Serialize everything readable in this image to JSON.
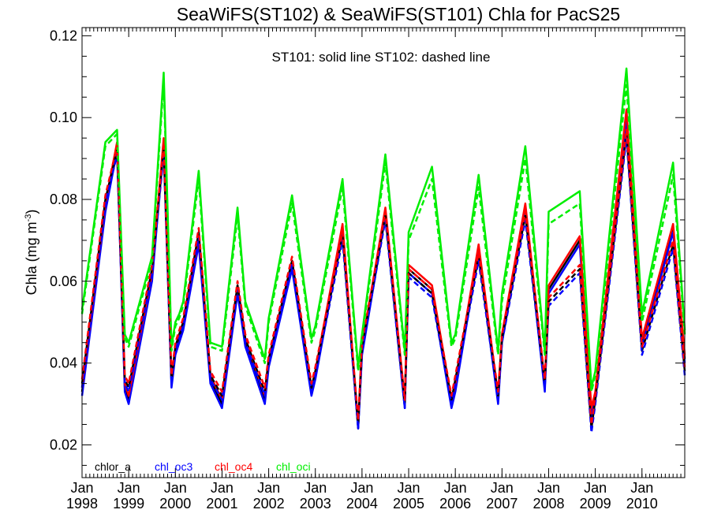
{
  "chart_data": {
    "type": "line",
    "title": "SeaWiFS(ST102) & SeaWiFS(ST101)  Chla for PacS25",
    "annotation": "ST101: solid line   ST102: dashed line",
    "ylabel": "Chla (mg m",
    "ylabel_sup": "-3",
    "ylabel_close": ")",
    "xlim": [
      1998.0,
      2010.917
    ],
    "ylim": [
      0.012,
      0.122
    ],
    "y_ticks": [
      0.02,
      0.04,
      0.06,
      0.08,
      0.1,
      0.12
    ],
    "y_tick_labels": [
      "0.02",
      "0.04",
      "0.06",
      "0.08",
      "0.10",
      "0.12"
    ],
    "x_ticks": [
      {
        "x": 1998,
        "month": "Jan",
        "year": "1998"
      },
      {
        "x": 1999,
        "month": "Jan",
        "year": "1999"
      },
      {
        "x": 2000,
        "month": "Jan",
        "year": "2000"
      },
      {
        "x": 2001,
        "month": "Jan",
        "year": "2001"
      },
      {
        "x": 2002,
        "month": "Jan",
        "year": "2002"
      },
      {
        "x": 2003,
        "month": "Jan",
        "year": "2003"
      },
      {
        "x": 2004,
        "month": "Jan",
        "year": "2004"
      },
      {
        "x": 2005,
        "month": "Jan",
        "year": "2005"
      },
      {
        "x": 2006,
        "month": "Jan",
        "year": "2006"
      },
      {
        "x": 2007,
        "month": "Jan",
        "year": "2007"
      },
      {
        "x": 2008,
        "month": "Jan",
        "year": "2008"
      },
      {
        "x": 2009,
        "month": "Jan",
        "year": "2009"
      },
      {
        "x": 2010,
        "month": "Jan",
        "year": "2010"
      }
    ],
    "grid": false,
    "legend_position": "bottom-left",
    "series": [
      {
        "name": "chlor_a",
        "color": "#000000",
        "style": "solid",
        "x": [
          1998.0,
          1998.5,
          1998.75,
          1998.917,
          1999.0,
          1999.5,
          1999.75,
          1999.917,
          2000.0,
          2000.083,
          2000.167,
          2000.5,
          2000.75,
          2001.0,
          2001.333,
          2001.5,
          2001.917,
          2002.0,
          2002.5,
          2002.917,
          2003.0,
          2003.583,
          2003.917,
          2004.0,
          2004.5,
          2004.917,
          2005.0,
          2005.5,
          2005.917,
          2006.0,
          2006.5,
          2006.917,
          2007.0,
          2007.5,
          2007.917,
          2008.0,
          2008.667,
          2008.917,
          2009.0,
          2009.667,
          2010.0,
          2010.667,
          2010.917
        ],
        "y": [
          0.033,
          0.078,
          0.093,
          0.034,
          0.031,
          0.061,
          0.094,
          0.035,
          0.043,
          0.046,
          0.049,
          0.07,
          0.036,
          0.03,
          0.058,
          0.045,
          0.031,
          0.04,
          0.064,
          0.033,
          0.037,
          0.073,
          0.024,
          0.043,
          0.077,
          0.03,
          0.063,
          0.058,
          0.03,
          0.034,
          0.068,
          0.031,
          0.046,
          0.078,
          0.034,
          0.058,
          0.07,
          0.028,
          0.032,
          0.101,
          0.045,
          0.073,
          0.041
        ]
      },
      {
        "name": "chl_oc3",
        "color": "#0000ff",
        "style": "solid",
        "x": [
          1998.0,
          1998.5,
          1998.75,
          1998.917,
          1999.0,
          1999.5,
          1999.75,
          1999.917,
          2000.0,
          2000.083,
          2000.167,
          2000.5,
          2000.75,
          2001.0,
          2001.333,
          2001.5,
          2001.917,
          2002.0,
          2002.5,
          2002.917,
          2003.0,
          2003.583,
          2003.917,
          2004.0,
          2004.5,
          2004.917,
          2005.0,
          2005.5,
          2005.917,
          2006.0,
          2006.5,
          2006.917,
          2007.0,
          2007.5,
          2007.917,
          2008.0,
          2008.667,
          2008.917,
          2009.0,
          2009.667,
          2010.0,
          2010.667,
          2010.917
        ],
        "y": [
          0.032,
          0.077,
          0.092,
          0.033,
          0.03,
          0.06,
          0.093,
          0.034,
          0.042,
          0.045,
          0.048,
          0.069,
          0.035,
          0.029,
          0.057,
          0.044,
          0.03,
          0.039,
          0.063,
          0.032,
          0.036,
          0.072,
          0.024,
          0.042,
          0.076,
          0.029,
          0.062,
          0.057,
          0.029,
          0.033,
          0.067,
          0.03,
          0.045,
          0.077,
          0.033,
          0.057,
          0.069,
          0.027,
          0.031,
          0.1,
          0.044,
          0.072,
          0.04
        ]
      },
      {
        "name": "chl_oc4",
        "color": "#ff0000",
        "style": "solid",
        "x": [
          1998.0,
          1998.5,
          1998.75,
          1998.917,
          1999.0,
          1999.5,
          1999.75,
          1999.917,
          2000.0,
          2000.083,
          2000.167,
          2000.5,
          2000.75,
          2001.0,
          2001.333,
          2001.5,
          2001.917,
          2002.0,
          2002.5,
          2002.917,
          2003.0,
          2003.583,
          2003.917,
          2004.0,
          2004.5,
          2004.917,
          2005.0,
          2005.5,
          2005.917,
          2006.0,
          2006.5,
          2006.917,
          2007.0,
          2007.5,
          2007.917,
          2008.0,
          2008.667,
          2008.917,
          2009.0,
          2009.667,
          2010.0,
          2010.667,
          2010.917
        ],
        "y": [
          0.034,
          0.079,
          0.094,
          0.035,
          0.032,
          0.062,
          0.095,
          0.036,
          0.044,
          0.047,
          0.05,
          0.071,
          0.037,
          0.031,
          0.059,
          0.046,
          0.032,
          0.041,
          0.065,
          0.034,
          0.038,
          0.074,
          0.025,
          0.044,
          0.078,
          0.031,
          0.064,
          0.059,
          0.031,
          0.035,
          0.069,
          0.032,
          0.047,
          0.079,
          0.035,
          0.059,
          0.071,
          0.029,
          0.033,
          0.102,
          0.046,
          0.074,
          0.042
        ]
      },
      {
        "name": "chl_oci",
        "color": "#00ee00",
        "style": "solid",
        "x": [
          1998.0,
          1998.5,
          1998.75,
          1998.917,
          1999.0,
          1999.5,
          1999.75,
          1999.917,
          2000.0,
          2000.083,
          2000.167,
          2000.5,
          2000.75,
          2001.0,
          2001.333,
          2001.5,
          2001.917,
          2002.0,
          2002.5,
          2002.917,
          2003.0,
          2003.583,
          2003.917,
          2004.0,
          2004.5,
          2004.917,
          2005.0,
          2005.5,
          2005.917,
          2006.0,
          2006.5,
          2006.917,
          2007.0,
          2007.5,
          2007.917,
          2008.0,
          2008.667,
          2008.917,
          2009.0,
          2009.667,
          2010.0,
          2010.667,
          2010.917
        ],
        "y": [
          0.053,
          0.094,
          0.097,
          0.047,
          0.045,
          0.066,
          0.111,
          0.044,
          0.05,
          0.052,
          0.055,
          0.087,
          0.045,
          0.044,
          0.078,
          0.055,
          0.041,
          0.051,
          0.081,
          0.046,
          0.049,
          0.085,
          0.039,
          0.047,
          0.091,
          0.043,
          0.072,
          0.088,
          0.045,
          0.047,
          0.086,
          0.043,
          0.057,
          0.093,
          0.043,
          0.077,
          0.082,
          0.034,
          0.038,
          0.112,
          0.052,
          0.089,
          0.048
        ]
      },
      {
        "name": "chlor_a (ST102)",
        "color": "#000000",
        "style": "dashed",
        "x": [
          1998.0,
          1998.5,
          1998.75,
          1998.917,
          1999.0,
          1999.5,
          1999.75,
          1999.917,
          2000.0,
          2000.083,
          2000.167,
          2000.5,
          2000.75,
          2001.0,
          2001.333,
          2001.5,
          2001.917,
          2002.0,
          2002.5,
          2002.917,
          2003.0,
          2003.583,
          2003.917,
          2004.0,
          2004.5,
          2004.917,
          2005.0,
          2005.5,
          2005.917,
          2006.0,
          2006.5,
          2006.917,
          2007.0,
          2007.5,
          2007.917,
          2008.0,
          2008.667,
          2008.917,
          2009.0,
          2009.667,
          2010.0,
          2010.667,
          2010.917
        ],
        "y": [
          0.035,
          0.08,
          0.092,
          0.036,
          0.034,
          0.063,
          0.092,
          0.036,
          0.044,
          0.047,
          0.05,
          0.072,
          0.037,
          0.032,
          0.059,
          0.046,
          0.033,
          0.041,
          0.065,
          0.034,
          0.038,
          0.071,
          0.025,
          0.044,
          0.076,
          0.03,
          0.062,
          0.057,
          0.031,
          0.036,
          0.066,
          0.032,
          0.046,
          0.076,
          0.035,
          0.055,
          0.063,
          0.024,
          0.031,
          0.096,
          0.043,
          0.069,
          0.038
        ]
      },
      {
        "name": "chl_oc3 (ST102)",
        "color": "#0000ff",
        "style": "dashed",
        "x": [
          1998.0,
          1998.5,
          1998.75,
          1998.917,
          1999.0,
          1999.5,
          1999.75,
          1999.917,
          2000.0,
          2000.083,
          2000.167,
          2000.5,
          2000.75,
          2001.0,
          2001.333,
          2001.5,
          2001.917,
          2002.0,
          2002.5,
          2002.917,
          2003.0,
          2003.583,
          2003.917,
          2004.0,
          2004.5,
          2004.917,
          2005.0,
          2005.5,
          2005.917,
          2006.0,
          2006.5,
          2006.917,
          2007.0,
          2007.5,
          2007.917,
          2008.0,
          2008.667,
          2008.917,
          2009.0,
          2009.667,
          2010.0,
          2010.667,
          2010.917
        ],
        "y": [
          0.034,
          0.079,
          0.091,
          0.035,
          0.033,
          0.062,
          0.091,
          0.035,
          0.043,
          0.046,
          0.049,
          0.071,
          0.036,
          0.031,
          0.058,
          0.045,
          0.032,
          0.04,
          0.064,
          0.033,
          0.037,
          0.07,
          0.024,
          0.043,
          0.075,
          0.029,
          0.061,
          0.056,
          0.03,
          0.035,
          0.065,
          0.031,
          0.045,
          0.075,
          0.034,
          0.054,
          0.062,
          0.023,
          0.03,
          0.095,
          0.042,
          0.068,
          0.037
        ]
      },
      {
        "name": "chl_oc4 (ST102)",
        "color": "#ff0000",
        "style": "dashed",
        "x": [
          1998.0,
          1998.5,
          1998.75,
          1998.917,
          1999.0,
          1999.5,
          1999.75,
          1999.917,
          2000.0,
          2000.083,
          2000.167,
          2000.5,
          2000.75,
          2001.0,
          2001.333,
          2001.5,
          2001.917,
          2002.0,
          2002.5,
          2002.917,
          2003.0,
          2003.583,
          2003.917,
          2004.0,
          2004.5,
          2004.917,
          2005.0,
          2005.5,
          2005.917,
          2006.0,
          2006.5,
          2006.917,
          2007.0,
          2007.5,
          2007.917,
          2008.0,
          2008.667,
          2008.917,
          2009.0,
          2009.667,
          2010.0,
          2010.667,
          2010.917
        ],
        "y": [
          0.036,
          0.081,
          0.093,
          0.037,
          0.035,
          0.064,
          0.093,
          0.037,
          0.045,
          0.048,
          0.051,
          0.073,
          0.038,
          0.033,
          0.06,
          0.047,
          0.034,
          0.042,
          0.066,
          0.035,
          0.039,
          0.072,
          0.026,
          0.045,
          0.077,
          0.031,
          0.063,
          0.058,
          0.032,
          0.037,
          0.067,
          0.033,
          0.047,
          0.077,
          0.036,
          0.056,
          0.064,
          0.025,
          0.032,
          0.097,
          0.044,
          0.07,
          0.039
        ]
      },
      {
        "name": "chl_oci (ST102)",
        "color": "#00ee00",
        "style": "dashed",
        "x": [
          1998.0,
          1998.5,
          1998.75,
          1998.917,
          1999.0,
          1999.5,
          1999.75,
          1999.917,
          2000.0,
          2000.083,
          2000.167,
          2000.5,
          2000.75,
          2001.0,
          2001.333,
          2001.5,
          2001.917,
          2002.0,
          2002.5,
          2002.917,
          2003.0,
          2003.583,
          2003.917,
          2004.0,
          2004.5,
          2004.917,
          2005.0,
          2005.5,
          2005.917,
          2006.0,
          2006.5,
          2006.917,
          2007.0,
          2007.5,
          2007.917,
          2008.0,
          2008.667,
          2008.917,
          2009.0,
          2009.667,
          2010.0,
          2010.667,
          2010.917
        ],
        "y": [
          0.052,
          0.093,
          0.096,
          0.046,
          0.044,
          0.065,
          0.109,
          0.043,
          0.049,
          0.051,
          0.054,
          0.085,
          0.044,
          0.043,
          0.076,
          0.054,
          0.04,
          0.05,
          0.079,
          0.045,
          0.048,
          0.083,
          0.038,
          0.046,
          0.089,
          0.042,
          0.07,
          0.085,
          0.044,
          0.046,
          0.083,
          0.042,
          0.055,
          0.09,
          0.042,
          0.074,
          0.079,
          0.033,
          0.037,
          0.108,
          0.05,
          0.086,
          0.047
        ]
      }
    ],
    "legend": [
      {
        "name": "chlor_a",
        "color": "#000000"
      },
      {
        "name": "chl_oc3",
        "color": "#0000ff"
      },
      {
        "name": "chl_oc4",
        "color": "#ff0000"
      },
      {
        "name": "chl_oci",
        "color": "#00ee00"
      }
    ]
  }
}
